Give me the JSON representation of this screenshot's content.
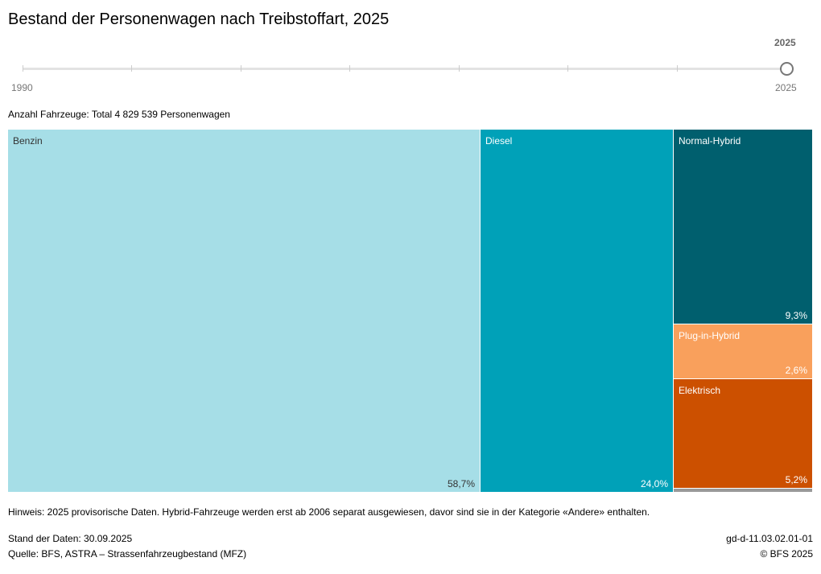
{
  "title": "Bestand der Personenwagen nach Treibstoffart, 2025",
  "slider": {
    "min": "1990",
    "max": "2025",
    "current": "2025"
  },
  "chart_data": {
    "type": "treemap",
    "title": "Bestand der Personenwagen nach Treibstoffart, 2025",
    "subtitle": "Anzahl Fahrzeuge: Total 4 829 539 Personenwagen",
    "categories": [
      "Benzin",
      "Diesel",
      "Normal-Hybrid",
      "Plug-in-Hybrid",
      "Elektrisch",
      "Andere"
    ],
    "labels": [
      "58,7%",
      "24,0%",
      "9,3%",
      "2,6%",
      "5,2%",
      ""
    ],
    "values": [
      58.7,
      24.0,
      9.3,
      2.6,
      5.2,
      0.2
    ],
    "colors": [
      "#a6dee7",
      "#00a1b8",
      "#005f6e",
      "#f9a05c",
      "#cc5000",
      "#999999"
    ]
  },
  "note": "Hinweis: 2025 provisorische Daten. Hybrid-Fahrzeuge werden erst ab 2006 separat ausgewiesen, davor sind sie in der Kategorie «Andere» enthalten.",
  "footer": {
    "stand": "Stand der Daten: 30.09.2025",
    "quelle": "Quelle: BFS, ASTRA – Strassenfahrzeugbestand (MFZ)",
    "id": "gd-d-11.03.02.01-01",
    "copy": "© BFS 2025"
  }
}
